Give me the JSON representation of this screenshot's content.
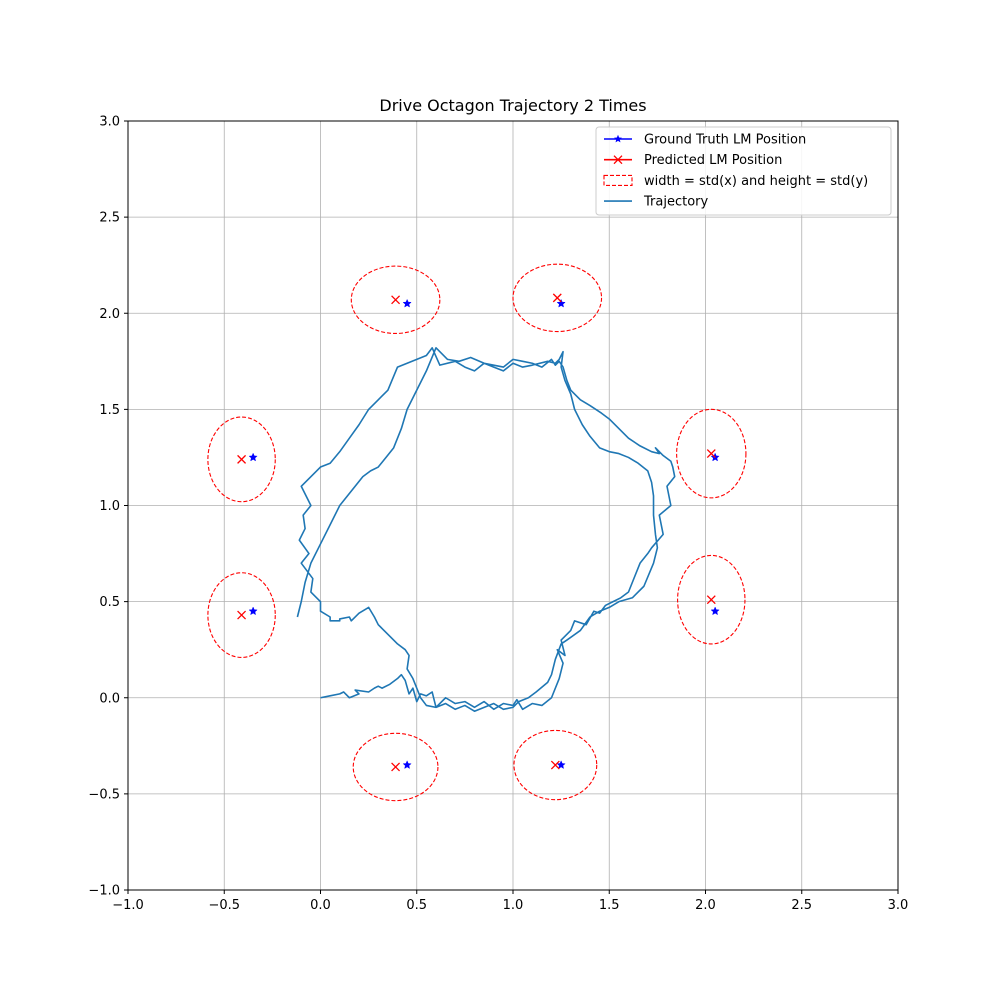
{
  "chart_data": {
    "type": "scatter",
    "title": "Drive Octagon Trajectory 2 Times",
    "xlabel": "",
    "ylabel": "",
    "xlim": [
      -1.0,
      3.0
    ],
    "ylim": [
      -1.0,
      3.0
    ],
    "x_ticks": [
      "−1.0",
      "−0.5",
      "0.0",
      "0.5",
      "1.0",
      "1.5",
      "2.0",
      "2.5",
      "3.0"
    ],
    "y_ticks": [
      "−1.0",
      "−0.5",
      "0.0",
      "0.5",
      "1.0",
      "1.5",
      "2.0",
      "2.5",
      "3.0"
    ],
    "grid": true,
    "legend_position": "top-right",
    "legend": [
      {
        "label": "Ground Truth LM Position",
        "kind": "star-line",
        "color": "#0000ff"
      },
      {
        "label": "Predicted LM Position",
        "kind": "x-line",
        "color": "#ff0000"
      },
      {
        "label": "width = std(x) and height = std(y)",
        "kind": "dashed-box",
        "color": "#ff0000"
      },
      {
        "label": "Trajectory",
        "kind": "line",
        "color": "#1f77b4"
      }
    ],
    "colors": {
      "ground_truth": "#0000ff",
      "predicted": "#ff0000",
      "ellipse": "#ff0000",
      "trajectory": "#1f77b4",
      "grid": "#b0b0b0"
    },
    "ground_truth": [
      {
        "x": 0.45,
        "y": 2.05
      },
      {
        "x": 1.25,
        "y": 2.05
      },
      {
        "x": 2.05,
        "y": 1.25
      },
      {
        "x": 2.05,
        "y": 0.45
      },
      {
        "x": 1.25,
        "y": -0.35
      },
      {
        "x": 0.45,
        "y": -0.35
      },
      {
        "x": -0.35,
        "y": 0.45
      },
      {
        "x": -0.35,
        "y": 1.25
      }
    ],
    "predicted": [
      {
        "x": 0.39,
        "y": 2.07,
        "std_x": 0.46,
        "std_y": 0.35
      },
      {
        "x": 1.23,
        "y": 2.08,
        "std_x": 0.46,
        "std_y": 0.35
      },
      {
        "x": 2.03,
        "y": 1.27,
        "std_x": 0.36,
        "std_y": 0.46
      },
      {
        "x": 2.03,
        "y": 0.51,
        "std_x": 0.35,
        "std_y": 0.46
      },
      {
        "x": 1.22,
        "y": -0.35,
        "std_x": 0.43,
        "std_y": 0.36
      },
      {
        "x": 0.39,
        "y": -0.36,
        "std_x": 0.44,
        "std_y": 0.35
      },
      {
        "x": -0.41,
        "y": 0.43,
        "std_x": 0.35,
        "std_y": 0.44
      },
      {
        "x": -0.41,
        "y": 1.24,
        "std_x": 0.35,
        "std_y": 0.44
      }
    ],
    "trajectory": {
      "x": [
        0.0,
        0.05,
        0.1,
        0.12,
        0.15,
        0.2,
        0.18,
        0.25,
        0.28,
        0.3,
        0.32,
        0.36,
        0.4,
        0.42,
        0.44,
        0.46,
        0.48,
        0.5,
        0.52,
        0.55,
        0.58,
        0.6,
        0.65,
        0.7,
        0.75,
        0.8,
        0.85,
        0.9,
        0.95,
        1.0,
        1.02,
        1.05,
        1.1,
        1.15,
        1.2,
        1.24,
        1.26,
        1.23,
        1.27,
        1.25,
        1.3,
        1.32,
        1.38,
        1.42,
        1.45,
        1.48,
        1.52,
        1.56,
        1.6,
        1.66,
        1.7,
        1.72,
        1.78,
        1.76,
        1.82,
        1.8,
        1.84,
        1.83,
        1.82,
        1.78,
        1.74,
        1.76,
        1.72,
        1.66,
        1.6,
        1.5,
        1.46,
        1.4,
        1.35,
        1.3,
        1.28,
        1.26,
        1.24,
        1.22,
        1.2,
        1.15,
        1.1,
        1.05,
        1.0,
        0.95,
        0.9,
        0.85,
        0.8,
        0.75,
        0.7,
        0.62,
        0.58,
        0.55,
        0.5,
        0.45,
        0.4,
        0.35,
        0.3,
        0.25,
        0.2,
        0.15,
        0.1,
        0.05,
        0.0,
        -0.05,
        -0.1,
        -0.05,
        -0.09,
        -0.08,
        -0.11,
        -0.06,
        -0.1,
        -0.04,
        -0.05,
        0.0,
        0.0,
        0.05,
        0.05,
        0.1,
        0.1,
        0.15,
        0.16,
        0.2,
        0.25,
        0.28,
        0.3,
        0.32,
        0.35,
        0.38,
        0.4,
        0.44,
        0.46,
        0.45,
        0.48,
        0.5,
        0.52,
        0.55,
        0.6,
        0.65,
        0.7,
        0.75,
        0.8,
        0.85,
        0.9,
        0.95,
        1.0,
        1.03,
        1.08,
        1.12,
        1.18,
        1.2,
        1.22,
        1.25,
        1.28,
        1.35,
        1.4,
        1.45,
        1.5,
        1.55,
        1.62,
        1.68,
        1.73,
        1.75,
        1.74,
        1.73,
        1.73,
        1.72,
        1.7,
        1.65,
        1.6,
        1.55,
        1.5,
        1.45,
        1.4,
        1.36,
        1.32,
        1.3,
        1.27,
        1.25,
        1.26,
        1.24,
        1.22,
        1.18,
        1.1,
        1.05,
        1.0,
        0.95,
        0.9,
        0.85,
        0.78,
        0.72,
        0.66,
        0.6,
        0.55,
        0.5,
        0.45,
        0.42,
        0.38,
        0.34,
        0.3,
        0.26,
        0.22,
        0.18,
        0.14,
        0.1,
        0.05,
        0.0,
        -0.05,
        -0.08,
        -0.1,
        -0.12
      ],
      "y": [
        0.0,
        0.01,
        0.02,
        0.03,
        0.0,
        0.02,
        0.04,
        0.03,
        0.05,
        0.06,
        0.05,
        0.07,
        0.1,
        0.12,
        0.09,
        0.02,
        0.05,
        -0.02,
        0.02,
        0.01,
        0.03,
        -0.05,
        0.0,
        -0.03,
        -0.02,
        -0.05,
        -0.02,
        -0.06,
        -0.03,
        -0.04,
        -0.01,
        -0.06,
        -0.03,
        -0.04,
        0.0,
        0.1,
        0.18,
        0.25,
        0.22,
        0.3,
        0.35,
        0.4,
        0.38,
        0.45,
        0.44,
        0.48,
        0.5,
        0.52,
        0.55,
        0.7,
        0.75,
        0.78,
        0.85,
        0.95,
        1.0,
        1.1,
        1.15,
        1.2,
        1.23,
        1.26,
        1.3,
        1.27,
        1.28,
        1.31,
        1.35,
        1.45,
        1.48,
        1.52,
        1.55,
        1.6,
        1.65,
        1.72,
        1.75,
        1.73,
        1.76,
        1.72,
        1.74,
        1.75,
        1.76,
        1.72,
        1.73,
        1.74,
        1.7,
        1.72,
        1.75,
        1.73,
        1.82,
        1.78,
        1.76,
        1.74,
        1.72,
        1.6,
        1.55,
        1.5,
        1.42,
        1.35,
        1.28,
        1.22,
        1.2,
        1.15,
        1.1,
        1.0,
        0.95,
        0.88,
        0.82,
        0.75,
        0.7,
        0.62,
        0.55,
        0.5,
        0.45,
        0.42,
        0.4,
        0.4,
        0.41,
        0.42,
        0.4,
        0.44,
        0.47,
        0.42,
        0.38,
        0.36,
        0.33,
        0.3,
        0.28,
        0.25,
        0.22,
        0.15,
        0.1,
        0.05,
        0.0,
        -0.04,
        -0.05,
        -0.03,
        -0.06,
        -0.04,
        -0.07,
        -0.05,
        -0.03,
        -0.06,
        -0.05,
        -0.02,
        0.0,
        0.03,
        0.08,
        0.12,
        0.2,
        0.28,
        0.3,
        0.35,
        0.42,
        0.45,
        0.47,
        0.5,
        0.52,
        0.58,
        0.7,
        0.78,
        0.85,
        0.95,
        1.05,
        1.12,
        1.18,
        1.22,
        1.25,
        1.27,
        1.28,
        1.3,
        1.36,
        1.42,
        1.5,
        1.58,
        1.65,
        1.72,
        1.8,
        1.76,
        1.74,
        1.75,
        1.73,
        1.72,
        1.74,
        1.7,
        1.72,
        1.74,
        1.77,
        1.75,
        1.76,
        1.82,
        1.7,
        1.6,
        1.5,
        1.4,
        1.3,
        1.25,
        1.2,
        1.18,
        1.15,
        1.1,
        1.05,
        1.0,
        0.9,
        0.8,
        0.7,
        0.6,
        0.5,
        0.42
      ]
    }
  }
}
